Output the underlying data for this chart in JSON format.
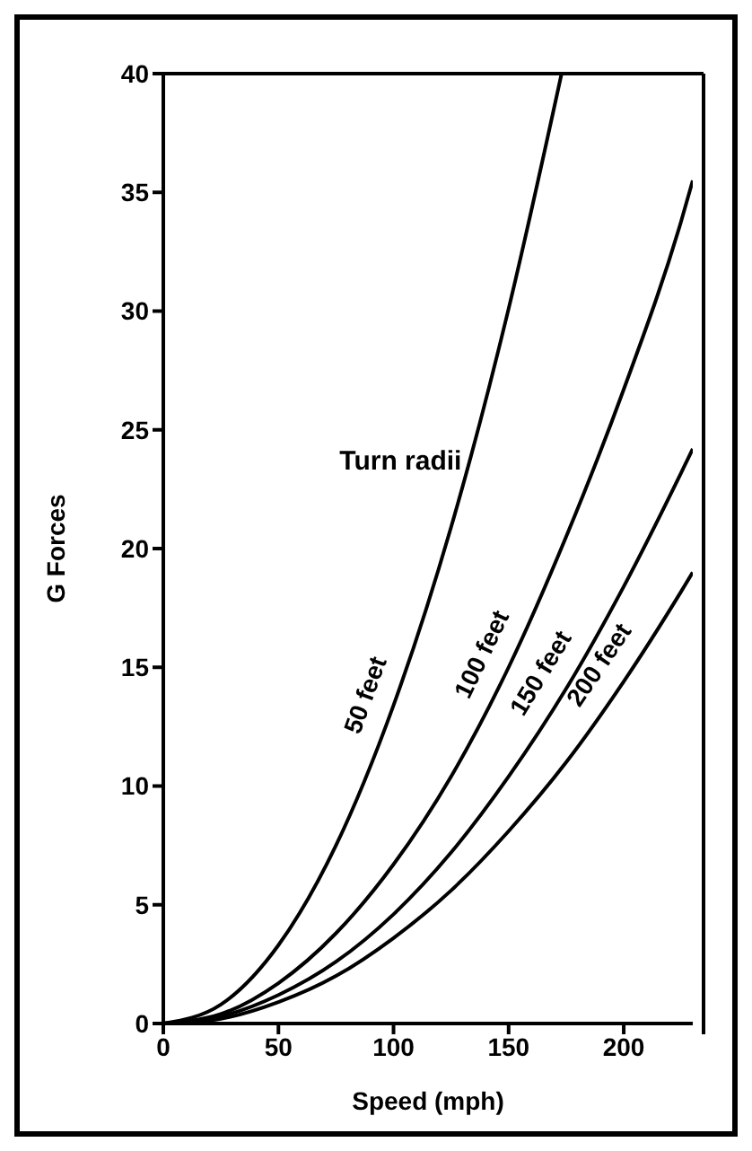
{
  "chart_data": {
    "type": "line",
    "xlabel": "Speed (mph)",
    "ylabel": "G Forces",
    "xlim": [
      0,
      230
    ],
    "xticks": [
      0,
      50,
      100,
      150,
      200
    ],
    "ylim": [
      0,
      40
    ],
    "yticks": [
      0,
      5,
      10,
      15,
      20,
      25,
      30,
      35,
      40
    ],
    "grid": false,
    "legend": false,
    "marker": "none",
    "line_style": "solid",
    "annotations": [
      "Turn radii"
    ],
    "series": [
      {
        "name": "50 feet",
        "color": "#000000",
        "x": [
          0,
          25,
          50,
          75,
          100,
          125,
          150,
          173
        ],
        "values": [
          0,
          0.8,
          3.3,
          7.5,
          13.4,
          20.9,
          30.1,
          40
        ]
      },
      {
        "name": "100 feet",
        "color": "#000000",
        "x": [
          0,
          25,
          50,
          75,
          100,
          125,
          150,
          175,
          200,
          225,
          230
        ],
        "values": [
          0,
          0.4,
          1.7,
          3.8,
          6.7,
          10.4,
          15.0,
          20.5,
          26.7,
          33.8,
          35.5
        ]
      },
      {
        "name": "150 feet",
        "color": "#000000",
        "x": [
          0,
          25,
          50,
          75,
          100,
          125,
          150,
          175,
          200,
          225,
          230
        ],
        "values": [
          0,
          0.3,
          1.2,
          2.6,
          4.6,
          7.2,
          10.4,
          14.1,
          18.4,
          23.2,
          24.2
        ]
      },
      {
        "name": "200 feet",
        "color": "#000000",
        "x": [
          0,
          25,
          50,
          75,
          100,
          125,
          150,
          175,
          200,
          225,
          230
        ],
        "values": [
          0,
          0.2,
          0.9,
          2.0,
          3.6,
          5.6,
          8.1,
          11.0,
          14.4,
          18.2,
          19.0
        ]
      }
    ]
  }
}
